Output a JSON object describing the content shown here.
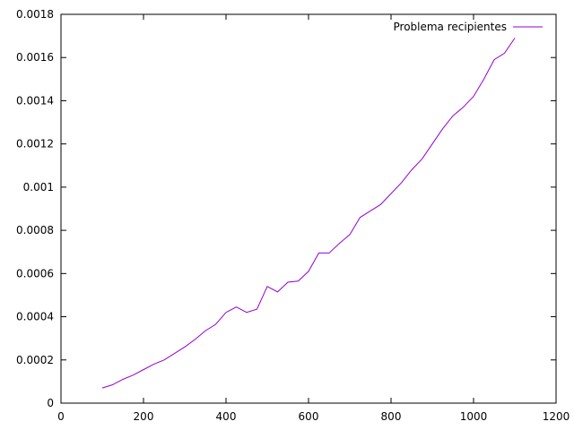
{
  "chart_data": {
    "type": "line",
    "title": "",
    "xlabel": "",
    "ylabel": "",
    "xlim": [
      0,
      1200
    ],
    "ylim": [
      0,
      0.0018
    ],
    "xticks": [
      0,
      200,
      400,
      600,
      800,
      1000,
      1200
    ],
    "yticks": [
      0,
      0.0002,
      0.0004,
      0.0006,
      0.0008,
      0.001,
      0.0012,
      0.0014,
      0.0016,
      0.0018
    ],
    "x_tick_labels": [
      "0",
      "200",
      "400",
      "600",
      "800",
      "1000",
      "1200"
    ],
    "y_tick_labels": [
      "0",
      "0.0002",
      "0.0004",
      "0.0006",
      "0.0008",
      "0.001",
      "0.0012",
      "0.0014",
      "0.0016",
      "0.0018"
    ],
    "grid": false,
    "legend": "top-right",
    "series": [
      {
        "name": "Problema recipientes",
        "color": "#9400D3",
        "x": [
          100,
          125,
          150,
          175,
          200,
          225,
          250,
          275,
          300,
          325,
          350,
          375,
          400,
          425,
          450,
          475,
          500,
          525,
          550,
          575,
          600,
          625,
          650,
          675,
          700,
          725,
          750,
          775,
          800,
          825,
          850,
          875,
          900,
          925,
          950,
          975,
          1000,
          1025,
          1050,
          1075,
          1100
        ],
        "values": [
          7e-05,
          8.5e-05,
          0.00011,
          0.00013,
          0.000155,
          0.00018,
          0.0002,
          0.00023,
          0.00026,
          0.000295,
          0.000335,
          0.000365,
          0.00042,
          0.000445,
          0.00042,
          0.000435,
          0.00054,
          0.000515,
          0.00056,
          0.000565,
          0.00061,
          0.000695,
          0.000695,
          0.00074,
          0.00078,
          0.00086,
          0.00089,
          0.00092,
          0.00097,
          0.00102,
          0.00108,
          0.00113,
          0.0012,
          0.00127,
          0.00133,
          0.00137,
          0.00142,
          0.0015,
          0.00159,
          0.00162,
          0.00169
        ]
      }
    ]
  }
}
